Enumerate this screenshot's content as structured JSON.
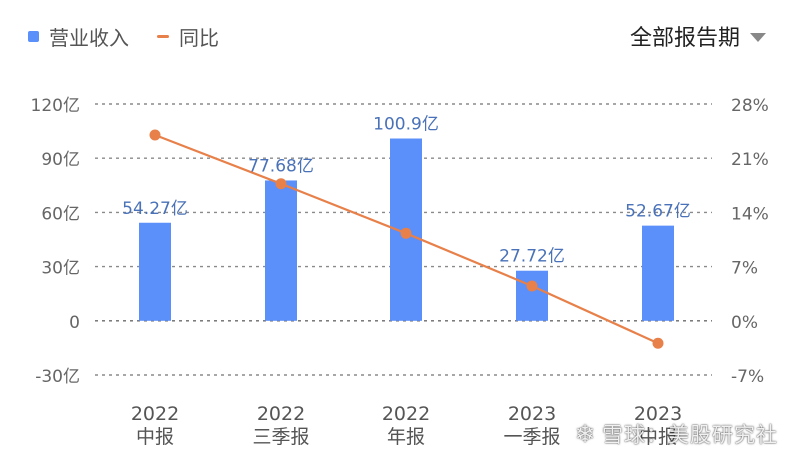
{
  "legend": {
    "revenue_label": "营业收入",
    "yoy_label": "同比"
  },
  "period_select": {
    "value": "全部报告期"
  },
  "watermark": {
    "text": "雪球：美股研究社"
  },
  "colors": {
    "bar": "#5b8ff9",
    "line": "#e8804a",
    "bar_label": "#4a72b8"
  },
  "chart_data": {
    "type": "bar",
    "categories": [
      "2022\n中报",
      "2022\n三季报",
      "2022\n年报",
      "2023\n一季报",
      "2023\n中报"
    ],
    "series": [
      {
        "name": "营业收入",
        "type": "bar",
        "values": [
          54.27,
          77.68,
          100.9,
          27.72,
          52.67
        ],
        "labels": [
          "54.27亿",
          "77.68亿",
          "100.9亿",
          "27.72亿",
          "52.67亿"
        ]
      },
      {
        "name": "同比",
        "type": "line",
        "values": [
          24.0,
          17.7,
          11.3,
          4.5,
          -2.9
        ]
      }
    ],
    "left_axis": {
      "ylim": [
        -30,
        120
      ],
      "ticks": [
        120,
        90,
        60,
        30,
        0,
        -30
      ],
      "tick_labels": [
        "120亿",
        "90亿",
        "60亿",
        "30亿",
        "0",
        "-30亿"
      ]
    },
    "right_axis": {
      "ylim": [
        -7,
        28
      ],
      "tick_labels": [
        "28%",
        "21%",
        "14%",
        "7%",
        "0%",
        "-7%"
      ]
    },
    "grid": true,
    "legend": "top-left"
  }
}
